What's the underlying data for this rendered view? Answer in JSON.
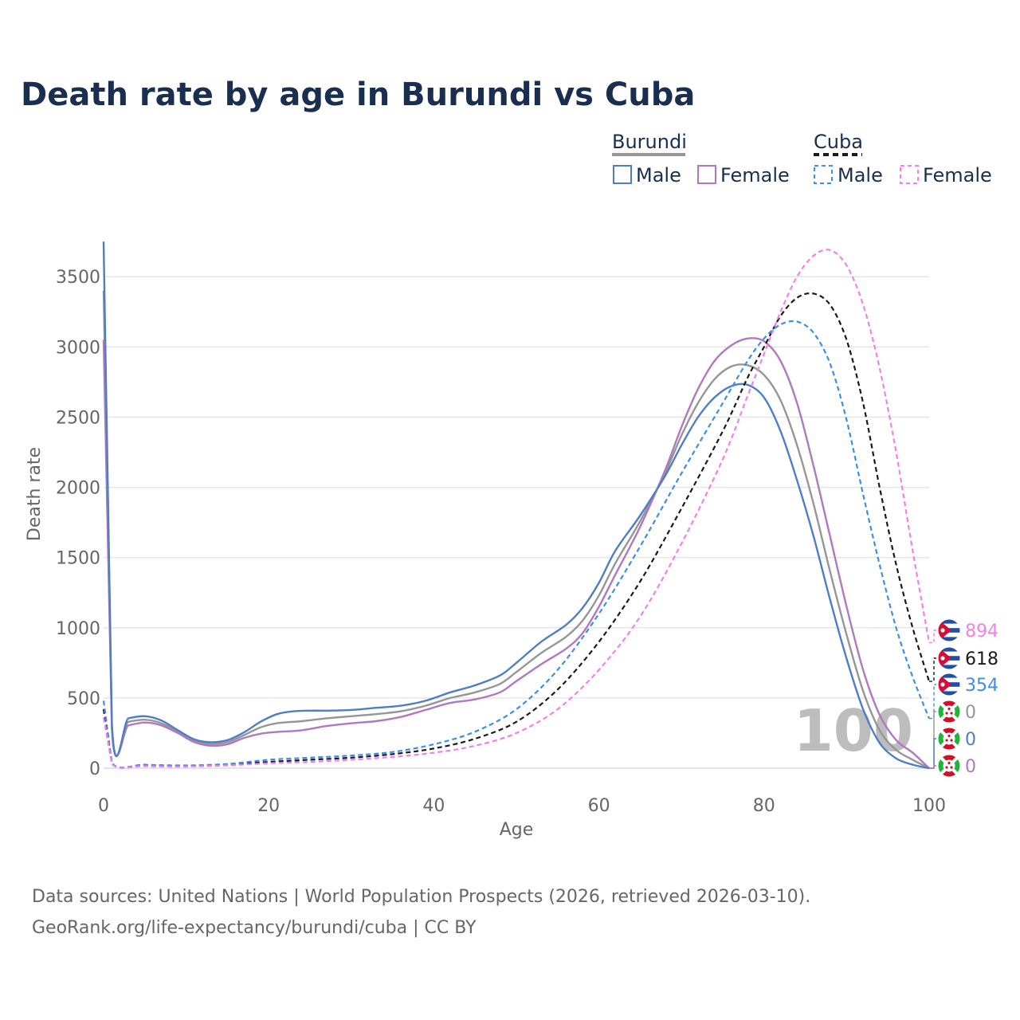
{
  "title": "Death rate by age in Burundi vs Cuba",
  "legend": {
    "groups": [
      {
        "name": "Burundi",
        "items": [
          "Male",
          "Female"
        ]
      },
      {
        "name": "Cuba",
        "items": [
          "Male",
          "Female"
        ]
      }
    ]
  },
  "colors": {
    "burundi_male": "#4f7ec7",
    "burundi_female": "#b179bd",
    "burundi_total": "#969696",
    "cuba_male": "#3d8ee8",
    "cuba_female": "#f47fe8",
    "cuba_total": "#1a1a1a",
    "grid": "#e6e6e6",
    "title": "#1a2e4f"
  },
  "year_label": "100",
  "source_lines": [
    "Data sources: United Nations | World Population Prospects (2026, retrieved 2026-03-10).",
    "GeoRank.org/life-expectancy/burundi/cuba | CC BY"
  ],
  "chart_data": {
    "type": "line",
    "title": "Death rate by age in Burundi vs Cuba",
    "xlabel": "Age",
    "ylabel": "Death rate",
    "xlim": [
      0,
      100
    ],
    "ylim": [
      0,
      3700
    ],
    "xticks": [
      0,
      20,
      40,
      60,
      80,
      100
    ],
    "yticks": [
      0,
      500,
      1000,
      1500,
      2000,
      2500,
      3000,
      3500
    ],
    "grid": true,
    "series": [
      {
        "name": "Burundi Male",
        "country": "Burundi",
        "sex": "Male",
        "dash": "solid",
        "color_key": "burundi_male",
        "points": [
          [
            0,
            3750
          ],
          [
            1,
            320
          ],
          [
            3,
            355
          ],
          [
            5,
            370
          ],
          [
            7,
            340
          ],
          [
            9,
            270
          ],
          [
            11,
            205
          ],
          [
            13,
            185
          ],
          [
            15,
            200
          ],
          [
            17,
            255
          ],
          [
            19,
            330
          ],
          [
            21,
            385
          ],
          [
            23,
            405
          ],
          [
            25,
            410
          ],
          [
            27,
            410
          ],
          [
            30,
            415
          ],
          [
            33,
            430
          ],
          [
            36,
            445
          ],
          [
            39,
            480
          ],
          [
            42,
            540
          ],
          [
            45,
            590
          ],
          [
            48,
            660
          ],
          [
            50,
            750
          ],
          [
            53,
            900
          ],
          [
            56,
            1020
          ],
          [
            58,
            1140
          ],
          [
            60,
            1320
          ],
          [
            62,
            1550
          ],
          [
            65,
            1800
          ],
          [
            68,
            2080
          ],
          [
            70,
            2300
          ],
          [
            72,
            2500
          ],
          [
            74,
            2640
          ],
          [
            76,
            2720
          ],
          [
            78,
            2730
          ],
          [
            80,
            2640
          ],
          [
            82,
            2400
          ],
          [
            84,
            2050
          ],
          [
            86,
            1650
          ],
          [
            88,
            1200
          ],
          [
            90,
            780
          ],
          [
            92,
            420
          ],
          [
            94,
            180
          ],
          [
            96,
            70
          ],
          [
            98,
            25
          ],
          [
            100,
            0
          ]
        ]
      },
      {
        "name": "Burundi Female",
        "country": "Burundi",
        "sex": "Female",
        "dash": "solid",
        "color_key": "burundi_female",
        "points": [
          [
            0,
            3050
          ],
          [
            1,
            275
          ],
          [
            3,
            305
          ],
          [
            5,
            325
          ],
          [
            7,
            305
          ],
          [
            9,
            250
          ],
          [
            11,
            185
          ],
          [
            13,
            160
          ],
          [
            15,
            170
          ],
          [
            17,
            215
          ],
          [
            19,
            245
          ],
          [
            21,
            258
          ],
          [
            24,
            270
          ],
          [
            27,
            300
          ],
          [
            30,
            320
          ],
          [
            33,
            335
          ],
          [
            36,
            365
          ],
          [
            39,
            415
          ],
          [
            42,
            465
          ],
          [
            45,
            490
          ],
          [
            48,
            540
          ],
          [
            50,
            620
          ],
          [
            53,
            740
          ],
          [
            56,
            850
          ],
          [
            58,
            960
          ],
          [
            60,
            1150
          ],
          [
            62,
            1380
          ],
          [
            65,
            1720
          ],
          [
            68,
            2120
          ],
          [
            70,
            2430
          ],
          [
            72,
            2700
          ],
          [
            74,
            2900
          ],
          [
            76,
            3010
          ],
          [
            78,
            3060
          ],
          [
            80,
            3040
          ],
          [
            82,
            2900
          ],
          [
            84,
            2600
          ],
          [
            86,
            2150
          ],
          [
            88,
            1650
          ],
          [
            90,
            1150
          ],
          [
            92,
            700
          ],
          [
            94,
            380
          ],
          [
            96,
            200
          ],
          [
            98,
            110
          ],
          [
            100,
            0
          ]
        ]
      },
      {
        "name": "Burundi Total",
        "country": "Burundi",
        "sex": "Total",
        "dash": "solid",
        "color_key": "burundi_total",
        "points": [
          [
            0,
            3400
          ],
          [
            1,
            300
          ],
          [
            3,
            330
          ],
          [
            5,
            345
          ],
          [
            7,
            320
          ],
          [
            9,
            260
          ],
          [
            11,
            195
          ],
          [
            13,
            172
          ],
          [
            15,
            185
          ],
          [
            17,
            235
          ],
          [
            19,
            290
          ],
          [
            21,
            320
          ],
          [
            24,
            335
          ],
          [
            27,
            355
          ],
          [
            30,
            370
          ],
          [
            33,
            385
          ],
          [
            36,
            405
          ],
          [
            39,
            445
          ],
          [
            42,
            500
          ],
          [
            45,
            540
          ],
          [
            48,
            600
          ],
          [
            50,
            685
          ],
          [
            53,
            820
          ],
          [
            56,
            935
          ],
          [
            58,
            1050
          ],
          [
            60,
            1230
          ],
          [
            62,
            1460
          ],
          [
            65,
            1760
          ],
          [
            68,
            2100
          ],
          [
            70,
            2370
          ],
          [
            72,
            2600
          ],
          [
            74,
            2770
          ],
          [
            76,
            2860
          ],
          [
            78,
            2870
          ],
          [
            80,
            2800
          ],
          [
            82,
            2620
          ],
          [
            84,
            2300
          ],
          [
            86,
            1880
          ],
          [
            88,
            1400
          ],
          [
            90,
            950
          ],
          [
            92,
            550
          ],
          [
            94,
            270
          ],
          [
            96,
            130
          ],
          [
            98,
            60
          ],
          [
            100,
            0
          ]
        ]
      },
      {
        "name": "Cuba Male",
        "country": "Cuba",
        "sex": "Male",
        "dash": "dashed",
        "color_key": "cuba_male",
        "points": [
          [
            0,
            480
          ],
          [
            1,
            40
          ],
          [
            5,
            25
          ],
          [
            10,
            20
          ],
          [
            15,
            30
          ],
          [
            20,
            60
          ],
          [
            25,
            75
          ],
          [
            30,
            90
          ],
          [
            35,
            115
          ],
          [
            40,
            170
          ],
          [
            45,
            260
          ],
          [
            50,
            420
          ],
          [
            55,
            700
          ],
          [
            60,
            1100
          ],
          [
            65,
            1580
          ],
          [
            70,
            2100
          ],
          [
            75,
            2600
          ],
          [
            78,
            2900
          ],
          [
            80,
            3060
          ],
          [
            82,
            3160
          ],
          [
            84,
            3180
          ],
          [
            86,
            3100
          ],
          [
            88,
            2880
          ],
          [
            90,
            2480
          ],
          [
            92,
            1950
          ],
          [
            94,
            1450
          ],
          [
            96,
            1000
          ],
          [
            98,
            650
          ],
          [
            100,
            354
          ]
        ]
      },
      {
        "name": "Cuba Female",
        "country": "Cuba",
        "sex": "Female",
        "dash": "dashed",
        "color_key": "cuba_female",
        "points": [
          [
            0,
            360
          ],
          [
            1,
            30
          ],
          [
            5,
            15
          ],
          [
            10,
            12
          ],
          [
            15,
            20
          ],
          [
            20,
            35
          ],
          [
            25,
            45
          ],
          [
            30,
            60
          ],
          [
            35,
            80
          ],
          [
            40,
            110
          ],
          [
            45,
            160
          ],
          [
            50,
            250
          ],
          [
            55,
            420
          ],
          [
            60,
            700
          ],
          [
            65,
            1080
          ],
          [
            70,
            1600
          ],
          [
            75,
            2200
          ],
          [
            78,
            2650
          ],
          [
            80,
            2950
          ],
          [
            82,
            3250
          ],
          [
            84,
            3500
          ],
          [
            86,
            3650
          ],
          [
            88,
            3690
          ],
          [
            90,
            3580
          ],
          [
            92,
            3300
          ],
          [
            94,
            2850
          ],
          [
            96,
            2250
          ],
          [
            98,
            1550
          ],
          [
            100,
            894
          ]
        ]
      },
      {
        "name": "Cuba Total",
        "country": "Cuba",
        "sex": "Total",
        "dash": "dashed",
        "color_key": "cuba_total",
        "points": [
          [
            0,
            420
          ],
          [
            1,
            35
          ],
          [
            5,
            20
          ],
          [
            10,
            15
          ],
          [
            15,
            25
          ],
          [
            20,
            45
          ],
          [
            25,
            60
          ],
          [
            30,
            75
          ],
          [
            35,
            100
          ],
          [
            40,
            140
          ],
          [
            45,
            210
          ],
          [
            50,
            330
          ],
          [
            55,
            560
          ],
          [
            60,
            900
          ],
          [
            65,
            1330
          ],
          [
            70,
            1850
          ],
          [
            75,
            2400
          ],
          [
            78,
            2780
          ],
          [
            80,
            3000
          ],
          [
            82,
            3220
          ],
          [
            84,
            3350
          ],
          [
            86,
            3380
          ],
          [
            88,
            3300
          ],
          [
            90,
            3050
          ],
          [
            92,
            2600
          ],
          [
            94,
            2000
          ],
          [
            96,
            1450
          ],
          [
            98,
            1000
          ],
          [
            100,
            618
          ]
        ]
      }
    ],
    "end_labels": [
      {
        "country": "Cuba",
        "value": "894",
        "color_key": "cuba_female"
      },
      {
        "country": "Cuba",
        "value": "618",
        "color_key": "cuba_total"
      },
      {
        "country": "Cuba",
        "value": "354",
        "color_key": "cuba_male"
      },
      {
        "country": "Burundi",
        "value": "0",
        "color_key": "burundi_total"
      },
      {
        "country": "Burundi",
        "value": "0",
        "color_key": "burundi_male"
      },
      {
        "country": "Burundi",
        "value": "0",
        "color_key": "burundi_female"
      }
    ]
  }
}
